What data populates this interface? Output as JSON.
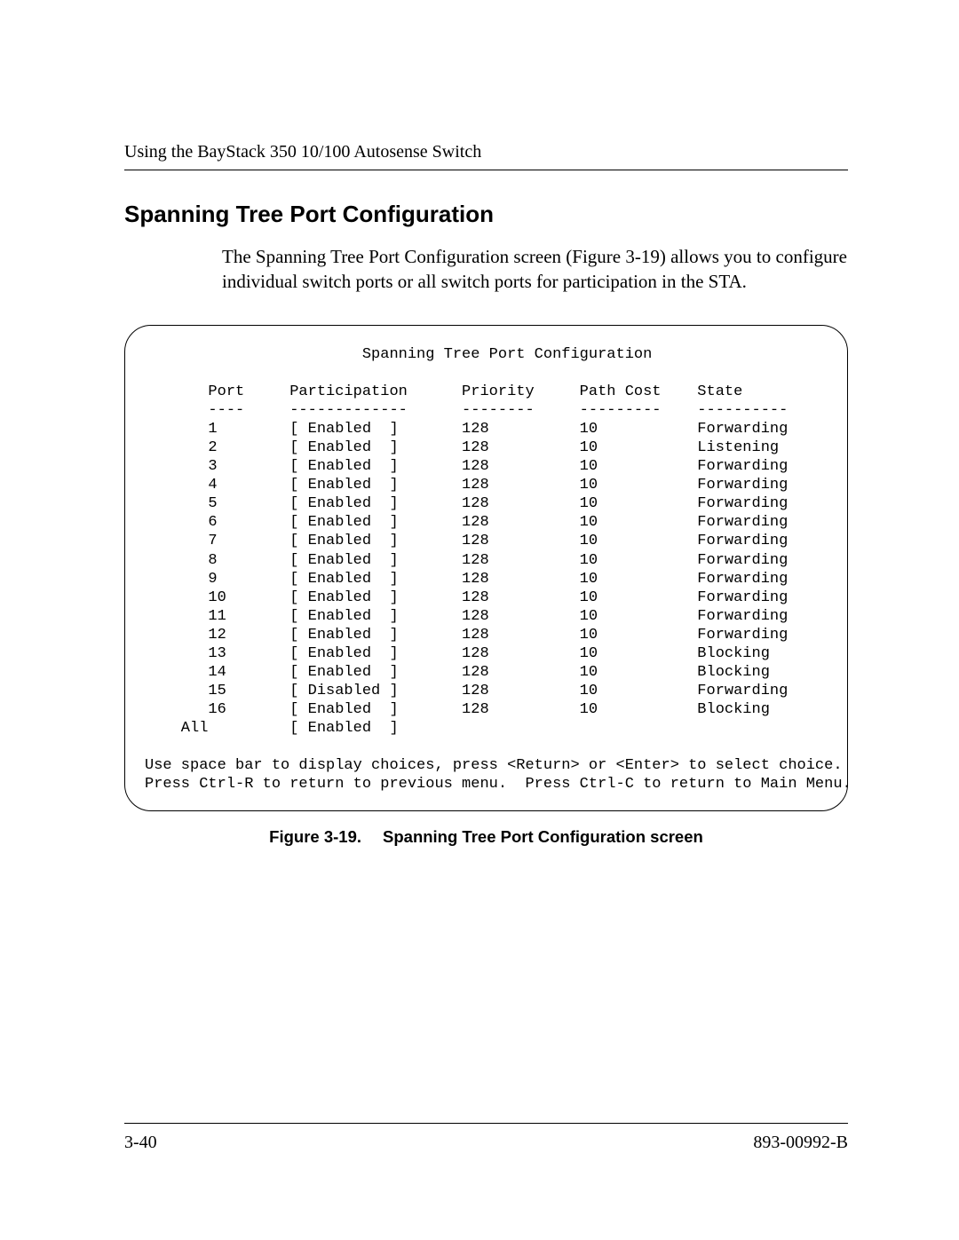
{
  "header": {
    "running_title": "Using the BayStack 350 10/100 Autosense Switch"
  },
  "section": {
    "title": "Spanning Tree Port Configuration",
    "paragraph": "The Spanning Tree Port Configuration screen (Figure 3-19) allows you to configure individual switch ports or all switch ports for participation in the STA."
  },
  "terminal": {
    "title": "Spanning Tree Port Configuration",
    "columns": [
      "Port",
      "Participation",
      "Priority",
      "Path Cost",
      "State"
    ],
    "dashes": [
      "----",
      "-------------",
      "--------",
      "---------",
      "----------"
    ],
    "rows": [
      {
        "port": "1",
        "participation": "Enabled",
        "priority": "128",
        "path_cost": "10",
        "state": "Forwarding"
      },
      {
        "port": "2",
        "participation": "Enabled",
        "priority": "128",
        "path_cost": "10",
        "state": "Listening"
      },
      {
        "port": "3",
        "participation": "Enabled",
        "priority": "128",
        "path_cost": "10",
        "state": "Forwarding"
      },
      {
        "port": "4",
        "participation": "Enabled",
        "priority": "128",
        "path_cost": "10",
        "state": "Forwarding"
      },
      {
        "port": "5",
        "participation": "Enabled",
        "priority": "128",
        "path_cost": "10",
        "state": "Forwarding"
      },
      {
        "port": "6",
        "participation": "Enabled",
        "priority": "128",
        "path_cost": "10",
        "state": "Forwarding"
      },
      {
        "port": "7",
        "participation": "Enabled",
        "priority": "128",
        "path_cost": "10",
        "state": "Forwarding"
      },
      {
        "port": "8",
        "participation": "Enabled",
        "priority": "128",
        "path_cost": "10",
        "state": "Forwarding"
      },
      {
        "port": "9",
        "participation": "Enabled",
        "priority": "128",
        "path_cost": "10",
        "state": "Forwarding"
      },
      {
        "port": "10",
        "participation": "Enabled",
        "priority": "128",
        "path_cost": "10",
        "state": "Forwarding"
      },
      {
        "port": "11",
        "participation": "Enabled",
        "priority": "128",
        "path_cost": "10",
        "state": "Forwarding"
      },
      {
        "port": "12",
        "participation": "Enabled",
        "priority": "128",
        "path_cost": "10",
        "state": "Forwarding"
      },
      {
        "port": "13",
        "participation": "Enabled",
        "priority": "128",
        "path_cost": "10",
        "state": "Blocking"
      },
      {
        "port": "14",
        "participation": "Enabled",
        "priority": "128",
        "path_cost": "10",
        "state": "Blocking"
      },
      {
        "port": "15",
        "participation": "Disabled",
        "priority": "128",
        "path_cost": "10",
        "state": "Forwarding"
      },
      {
        "port": "16",
        "participation": "Enabled",
        "priority": "128",
        "path_cost": "10",
        "state": "Blocking"
      }
    ],
    "all_row": {
      "port": "All",
      "participation": "Enabled"
    },
    "help1": "Use space bar to display choices, press <Return> or <Enter> to select choice.",
    "help2": "Press Ctrl-R to return to previous menu.  Press Ctrl-C to return to Main Menu.",
    "col_widths": {
      "indent": 7,
      "port": 9,
      "part_open": 2,
      "part": 9,
      "part_close": 8,
      "priority": 13,
      "path_cost": 10,
      "state": 0
    }
  },
  "figure": {
    "label": "Figure 3-19.",
    "caption": "Spanning Tree Port Configuration screen"
  },
  "footer": {
    "page_number": "3-40",
    "doc_number": "893-00992-B"
  }
}
